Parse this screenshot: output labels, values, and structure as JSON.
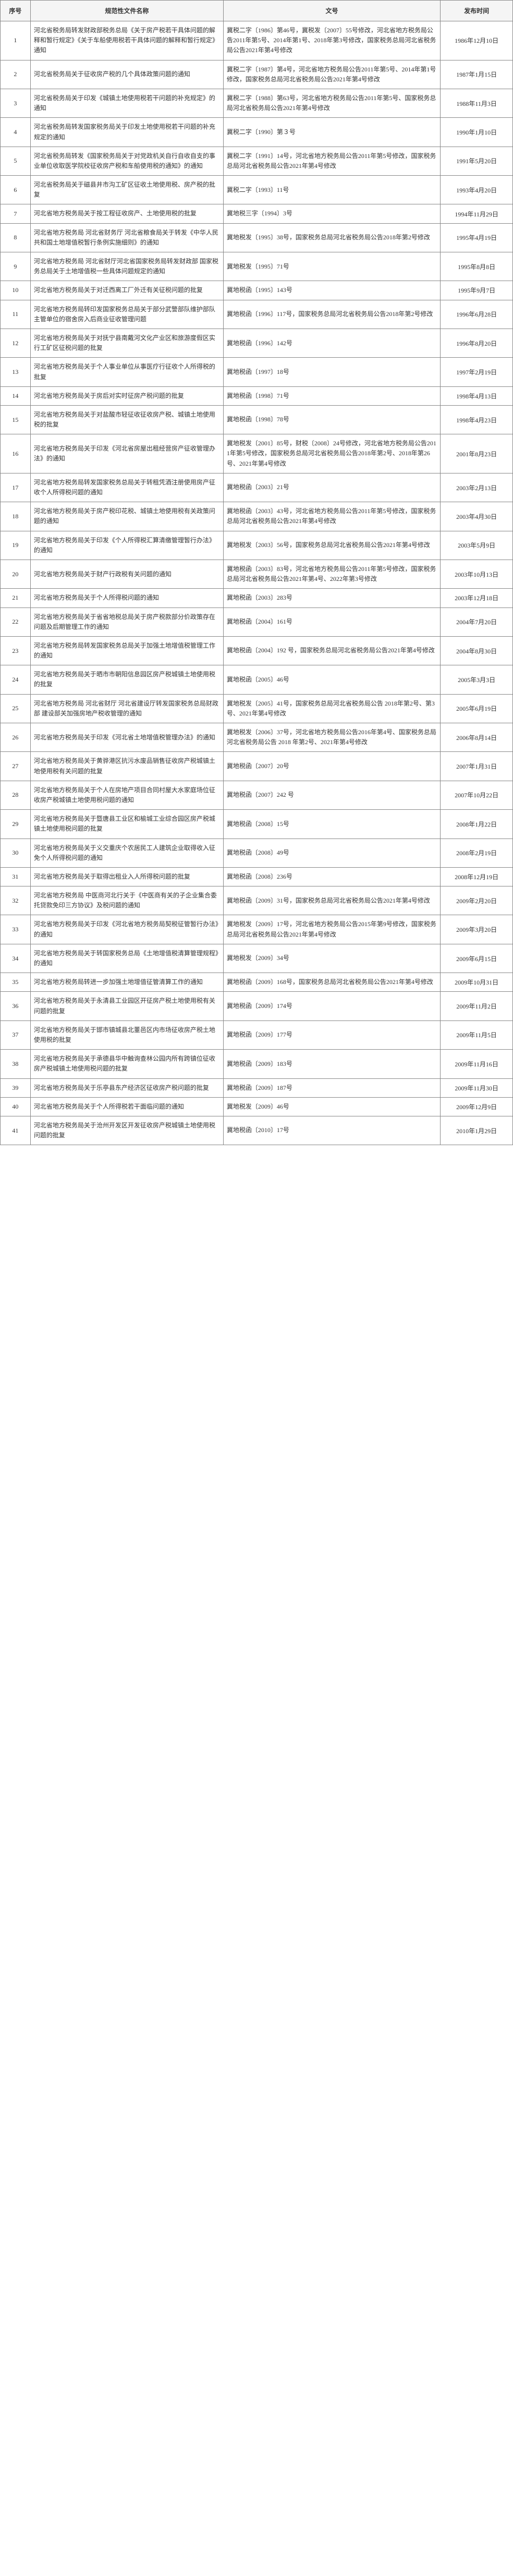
{
  "headers": {
    "seq": "序号",
    "name": "规范性文件名称",
    "docnum": "文号",
    "date": "发布时间"
  },
  "rows": [
    {
      "seq": "1",
      "name": "河北省税务局转发财政部税务总局《关于房产税若干具体问题的解释和暂行规定》《关于车船使用税若干具体问题的解释和暂行规定》通知",
      "docnum": "冀税二字〔1986〕第46号，冀税发〔2007〕55号修改，河北省地方税务局公告2011年第5号、2014年第1号、2018年第3号修改，国家税务总局河北省税务局公告2021年第4号修改",
      "date": "1986年12月10日"
    },
    {
      "seq": "2",
      "name": "河北省税务局关于征收房产税的几个具体政策问题的通知",
      "docnum": "冀税二字〔1987〕第4号，河北省地方税务局公告2011年第5号、2014年第1号修改，国家税务总局河北省税务局公告2021年第4号修改",
      "date": "1987年1月15日"
    },
    {
      "seq": "3",
      "name": "河北省税务局关于印发《城镇土地使用税若干问题的补充规定》的通知",
      "docnum": "冀税二字〔1988〕第63号，河北省地方税务局公告2011年第5号、国家税务总局河北省税务局公告2021年第4号修改",
      "date": "1988年11月3日"
    },
    {
      "seq": "4",
      "name": "河北省税务局转发国家税务局关于印发土地使用税若干问题的补充规定的通知",
      "docnum": "冀税二字〔1990〕第３号",
      "date": "1990年1月10日"
    },
    {
      "seq": "5",
      "name": "河北省税务局转发《国家税务局关于对党政机关自行自收自支的事业单位收取医学院校征收房产税和车船使用税的通知》的通知",
      "docnum": "冀税二字〔1991〕14号，河北省地方税务局公告2011年第5号修改，国家税务总局河北省税务局公告2021年第4号修改",
      "date": "1991年5月20日"
    },
    {
      "seq": "6",
      "name": "河北省税务局关于磁县井市沟工矿区征收土地使用税、房产税的批复",
      "docnum": "冀税二字〔1993〕11号",
      "date": "1993年4月20日"
    },
    {
      "seq": "7",
      "name": "河北省地方税务局关于按工程征收房产、土地使用税的批复",
      "docnum": "冀地税三字〔1994〕3号",
      "date": "1994年11月29日"
    },
    {
      "seq": "8",
      "name": "河北省地方税务局 河北省财务厅 河北省粮食局关于转发《中华人民共和国土地增值税暂行条例实施细则》的通知",
      "docnum": "冀地税发〔1995〕38号，国家税务总局河北省税务局公告2018年第2号修改",
      "date": "1995年4月19日"
    },
    {
      "seq": "9",
      "name": "河北省地方税务局 河北省财厅河北省国家税务局转发财政部 国家税务总局关于土地增值税一些具体问题规定的通知",
      "docnum": "冀地税发〔1995〕71号",
      "date": "1995年8月8日"
    },
    {
      "seq": "10",
      "name": "河北省地方税务局关于对迁西离工厂外迁有关征税问题的批复",
      "docnum": "冀地税函〔1995〕143号",
      "date": "1995年9月7日"
    },
    {
      "seq": "11",
      "name": "河北省地方税务局转印发国家税务总局关于部分武警部队维护部队主管单位的宿舍房入后商业征收管理问题",
      "docnum": "冀地税函〔1996〕117号，国家税务总局河北省税务局公告2018年第2号修改",
      "date": "1996年6月28日"
    },
    {
      "seq": "12",
      "name": "河北省地方税务局关于对抚宁县南戴河文化产业区和旅游度假区实行工矿区征税问题的批复",
      "docnum": "冀地税函〔1996〕142号",
      "date": "1996年8月20日"
    },
    {
      "seq": "13",
      "name": "河北省地方税务局关于个人事业单位从事医疗行征收个人所得税的批复",
      "docnum": "冀地税函〔1997〕18号",
      "date": "1997年2月19日"
    },
    {
      "seq": "14",
      "name": "河北省地方税务局关于房后对实时征房产税问题的批复",
      "docnum": "冀地税函〔1998〕71号",
      "date": "1998年4月13日"
    },
    {
      "seq": "15",
      "name": "河北省地方税务局关于对盐酸市轻征收征收房产税、城镇土地使用税的批复",
      "docnum": "冀地税函〔1998〕78号",
      "date": "1998年4月23日"
    },
    {
      "seq": "16",
      "name": "河北省地方税务局关于印发《河北省房屋出租经营房产征收管理办法》的通知",
      "docnum": "冀地税发〔2001〕85号，财税〔2008〕24号修改，河北省地方税务局公告2011年第5号修改，国家税务总局河北省税务局公告2018年第2号、2018年第26号、2021年第4号修改",
      "date": "2001年8月23日"
    },
    {
      "seq": "17",
      "name": "河北省地方税务局转发国家税务总局关于转租凭酒注册使用房产征收个人所得税问题的通知",
      "docnum": "冀地税函〔2003〕21号",
      "date": "2003年2月13日"
    },
    {
      "seq": "18",
      "name": "河北省地方税务局关于房产税印花税、城镇土地使用税有关政策问题的通知",
      "docnum": "冀地税函〔2003〕43号，河北省地方税务局公告2011年第5号修改，国家税务总局河北省税务局公告2021年第4号修改",
      "date": "2003年4月30日"
    },
    {
      "seq": "19",
      "name": "河北省地方税务局关于印发《个人所得税汇算清缴管理暂行办法》的通知",
      "docnum": "冀地税发〔2003〕56号，国家税务总局河北省税务局公告2021年第4号修改",
      "date": "2003年5月9日"
    },
    {
      "seq": "20",
      "name": "河北省地方税务局关于财产行政税有关问题的通知",
      "docnum": "冀地税函〔2003〕83号，河北省地方税务局公告2011年第5号修改，国家税务总局河北省税务局公告2021年第4号、2022年第3号修改",
      "date": "2003年10月13日"
    },
    {
      "seq": "21",
      "name": "河北省地方税务局关于个人所得税问题的通知",
      "docnum": "冀地税函〔2003〕283号",
      "date": "2003年12月18日"
    },
    {
      "seq": "22",
      "name": "河北省地方税务局关于省省地税总局关于房产税款部分价政策存在问题及后期管理工作的通知",
      "docnum": "冀地税函〔2004〕161号",
      "date": "2004年7月20日"
    },
    {
      "seq": "23",
      "name": "河北省地方税务局转发国家税务总局关于加强土地增值税管理工作的通知",
      "docnum": "冀地税函〔2004〕192 号，国家税务总局河北省税务局公告2021年第4号修改",
      "date": "2004年8月30日"
    },
    {
      "seq": "24",
      "name": "河北省地方税务局关于晒市市朝阳信息园区房产税城镇土地使用税的批复",
      "docnum": "冀地税函〔2005〕46号",
      "date": "2005年3月3日"
    },
    {
      "seq": "25",
      "name": "河北省地方税务局 河北省财厅 河北省建设厅转发国家税务总局财政部 建设部关加强房地产税收管理的通知",
      "docnum": "冀地税发〔2005〕41号，国家税务总局河北省税务局公告 2018年第2号、第3号、2021年第4号修改",
      "date": "2005年6月19日"
    },
    {
      "seq": "26",
      "name": "河北省地方税务局关于印发《河北省土地增值税管理办法》的通知",
      "docnum": "冀地税发〔2006〕37号，河北省地方税务局公告2016年第4号、国家税务总局河北省税务局公告 2018 年第2号、2021年第4号修改",
      "date": "2006年8月14日"
    },
    {
      "seq": "27",
      "name": "河北省地方税务局关于黄骅港区抗污水废品销售征收房产税城镇土地使用税有关问题的批复",
      "docnum": "冀地税函〔2007〕20号",
      "date": "2007年1月31日"
    },
    {
      "seq": "28",
      "name": "河北省地方税务局关于个人在房地产项目合同村屋大水家庭场位征收房产税城镇土地使用税问题的通知",
      "docnum": "冀地税函〔2007〕242 号",
      "date": "2007年10月22日"
    },
    {
      "seq": "29",
      "name": "河北省地方税务局关于暨唐县工业区和榆城工业综合园区房产税城镇土地使用税问题的批复",
      "docnum": "冀地税函〔2008〕15号",
      "date": "2008年1月22日"
    },
    {
      "seq": "30",
      "name": "河北省地方税务局关于义交重庆个农居民工人建筑企业取得收入征免个人所得税问题的通知",
      "docnum": "冀地税函〔2008〕49号",
      "date": "2008年2月19日"
    },
    {
      "seq": "31",
      "name": "河北省地方税务局关于取得出租业入人所得税问题的批复",
      "docnum": "冀地税函〔2008〕236号",
      "date": "2008年12月19日"
    },
    {
      "seq": "32",
      "name": "河北省地方税务局 中医商河北行关于《中医商有关的子企业集合委托贷款免印三方协议》及税问题的通知",
      "docnum": "冀地税函〔2009〕31号，国家税务总局河北省税务局公告2021年第4号修改",
      "date": "2009年2月20日"
    },
    {
      "seq": "33",
      "name": "河北省地方税务局关于印发《河北省地方税务局契税征管暂行办法》的通知",
      "docnum": "冀地税发〔2009〕17号，河北省地方税务局公告2015年第9号修改，国家税务总局河北省税务局公告2021年第4号修改",
      "date": "2009年3月20日"
    },
    {
      "seq": "34",
      "name": "河北省地方税务局关于转国家税务总局《土地增值税清算管理规程》的通知",
      "docnum": "冀地税发〔2009〕34号",
      "date": "2009年6月15日"
    },
    {
      "seq": "35",
      "name": "河北省地方税务局转进一步加强土地增值征管清算工作的通知",
      "docnum": "冀地税函〔2009〕168号，国家税务总局河北省税务局公告2021年第4号修改",
      "date": "2009年10月31日"
    },
    {
      "seq": "36",
      "name": "河北省地方税务局关于永清县工业园区开征房产税土地使用税有关问题的批复",
      "docnum": "冀地税函〔2009〕174号",
      "date": "2009年11月2日"
    },
    {
      "seq": "37",
      "name": "河北省地方税务局关于邯市镇城县北董邑区内市场征收房产税土地使用税的批复",
      "docnum": "冀地税函〔2009〕177号",
      "date": "2009年11月5日"
    },
    {
      "seq": "38",
      "name": "河北省地方税务局关于承德县华中触询查林公园内所有跨镇位征收房产税城镇土地使用税问题的批复",
      "docnum": "冀地税函〔2009〕183号",
      "date": "2009年11月16日"
    },
    {
      "seq": "39",
      "name": "河北省地方税务局关于乐亭县东产经济区征收房产税问题的批复",
      "docnum": "冀地税函〔2009〕187号",
      "date": "2009年11月30日"
    },
    {
      "seq": "40",
      "name": "河北省地方税务局关于个人所得税若干面临问题的通知",
      "docnum": "冀地税发〔2009〕46号",
      "date": "2009年12月9日"
    },
    {
      "seq": "41",
      "name": "河北省地方税务局关于沧州开发区开发征收房产税城镇土地使用税问题的批复",
      "docnum": "冀地税函〔2010〕17号",
      "date": "2010年1月29日"
    }
  ]
}
